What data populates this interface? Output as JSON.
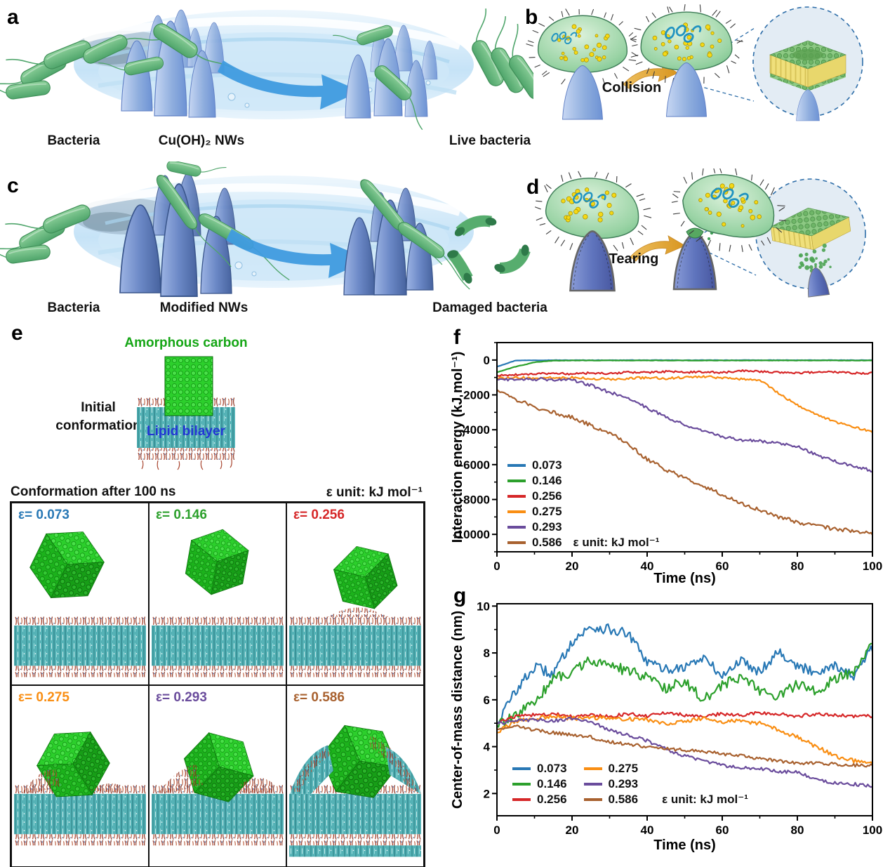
{
  "panel_a": {
    "letter": "a",
    "bacteria": "Bacteria",
    "nws": "Cu(OH)₂ NWs",
    "live": "Live bacteria"
  },
  "panel_b": {
    "letter": "b",
    "arrow": "Collision"
  },
  "panel_c": {
    "letter": "c",
    "bacteria": "Bacteria",
    "nws": "Modified NWs",
    "damaged": "Damaged bacteria"
  },
  "panel_d": {
    "letter": "d",
    "arrow": "Tearing"
  },
  "panel_e": {
    "letter": "e",
    "carbon": "Amorphous carbon",
    "initial_l1": "Initial",
    "initial_l2": "conformation",
    "bilayer": "Lipid bilayer",
    "grid_title": "Conformation after 100 ns",
    "unit": "ε unit: kJ mol⁻¹",
    "cells": [
      {
        "label": "ε= 0.073",
        "color": "#2878b5"
      },
      {
        "label": "ε= 0.146",
        "color": "#2ca02c"
      },
      {
        "label": "ε= 0.256",
        "color": "#d62728"
      },
      {
        "label": "ε= 0.275",
        "color": "#f98e13"
      },
      {
        "label": "ε= 0.293",
        "color": "#6a4c9c"
      },
      {
        "label": "ε= 0.586",
        "color": "#a8612f"
      }
    ]
  },
  "chart_data": [
    {
      "id": "f",
      "panel_letter": "f",
      "type": "line",
      "title": "",
      "xlabel": "Time (ns)",
      "ylabel": "Interaction energy (kJ mol⁻¹)",
      "xlim": [
        0,
        100
      ],
      "ylim": [
        -11000,
        1000
      ],
      "xticks": [
        0,
        20,
        40,
        60,
        80,
        100
      ],
      "yticks": [
        0,
        -2000,
        -4000,
        -6000,
        -8000,
        -10000
      ],
      "x_minor": 10,
      "y_minor": 1000,
      "grid": false,
      "legend_position": "lower-left",
      "legend_note": "ε unit: kJ mol⁻¹",
      "x": [
        0,
        5,
        10,
        15,
        20,
        25,
        30,
        35,
        40,
        45,
        50,
        55,
        60,
        65,
        70,
        75,
        80,
        85,
        90,
        95,
        100
      ],
      "series": [
        {
          "name": "0.073",
          "color": "#2878b5",
          "noise": 8,
          "values": [
            -380,
            -25,
            -12,
            -10,
            -12,
            -10,
            -12,
            -10,
            -12,
            -10,
            -12,
            -10,
            -12,
            -10,
            -12,
            -10,
            -12,
            -10,
            -12,
            -10,
            -12
          ]
        },
        {
          "name": "0.146",
          "color": "#2ca02c",
          "noise": 10,
          "values": [
            -700,
            -380,
            -130,
            -35,
            -25,
            -25,
            -25,
            -25,
            -25,
            -25,
            -25,
            -25,
            -25,
            -25,
            -25,
            -25,
            -25,
            -25,
            -25,
            -25,
            -25
          ]
        },
        {
          "name": "0.256",
          "color": "#d62728",
          "noise": 55,
          "values": [
            -900,
            -840,
            -800,
            -760,
            -800,
            -740,
            -780,
            -700,
            -720,
            -660,
            -700,
            -690,
            -720,
            -610,
            -660,
            -700,
            -730,
            -700,
            -690,
            -760,
            -750
          ]
        },
        {
          "name": "0.275",
          "color": "#f98e13",
          "noise": 65,
          "values": [
            -1050,
            -980,
            -1060,
            -1010,
            -1000,
            -1060,
            -1110,
            -1050,
            -1000,
            -1060,
            -1000,
            -960,
            -1010,
            -1100,
            -1150,
            -1900,
            -2600,
            -3100,
            -3550,
            -3850,
            -4100
          ]
        },
        {
          "name": "0.293",
          "color": "#6a4c9c",
          "noise": 85,
          "values": [
            -1100,
            -1150,
            -1100,
            -1120,
            -1150,
            -1450,
            -1850,
            -2150,
            -2750,
            -3250,
            -3700,
            -4100,
            -4400,
            -4600,
            -4650,
            -4750,
            -4950,
            -5450,
            -5800,
            -6100,
            -6350
          ]
        },
        {
          "name": "0.586",
          "color": "#a8612f",
          "noise": 110,
          "values": [
            -1700,
            -2250,
            -2700,
            -3000,
            -3300,
            -3750,
            -4150,
            -4850,
            -5700,
            -6300,
            -6750,
            -7250,
            -7700,
            -8200,
            -8600,
            -9000,
            -9300,
            -9500,
            -9700,
            -9800,
            -9950
          ]
        }
      ]
    },
    {
      "id": "g",
      "panel_letter": "g",
      "type": "line",
      "title": "",
      "xlabel": "Time (ns)",
      "ylabel": "Center-of-mass distance (nm)",
      "xlim": [
        0,
        100
      ],
      "ylim": [
        1.05,
        10.1
      ],
      "xticks": [
        0,
        20,
        40,
        60,
        80,
        100
      ],
      "yticks": [
        2,
        4,
        6,
        8,
        10
      ],
      "x_minor": 10,
      "y_minor": 1,
      "grid": false,
      "legend_position": "lower-left",
      "legend_note": "ε unit: kJ mol⁻¹",
      "x": [
        0,
        5,
        10,
        15,
        20,
        25,
        30,
        35,
        40,
        45,
        50,
        55,
        60,
        65,
        70,
        75,
        80,
        85,
        90,
        95,
        100
      ],
      "series": [
        {
          "name": "0.073",
          "color": "#2878b5",
          "noise": 0.22,
          "values": [
            5.0,
            6.4,
            7.4,
            7.1,
            8.5,
            9.1,
            9.0,
            8.8,
            7.6,
            7.3,
            7.4,
            7.8,
            7.0,
            7.7,
            7.2,
            8.1,
            7.4,
            7.2,
            7.5,
            7.0,
            8.2
          ]
        },
        {
          "name": "0.146",
          "color": "#2ca02c",
          "noise": 0.22,
          "values": [
            4.9,
            5.3,
            5.9,
            6.9,
            7.2,
            7.7,
            7.5,
            7.2,
            7.0,
            6.5,
            6.8,
            6.0,
            6.6,
            7.0,
            6.4,
            6.1,
            6.7,
            6.3,
            6.9,
            7.2,
            8.5
          ]
        },
        {
          "name": "0.256",
          "color": "#d62728",
          "noise": 0.07,
          "values": [
            5.0,
            5.3,
            5.35,
            5.4,
            5.3,
            5.35,
            5.3,
            5.4,
            5.3,
            5.45,
            5.35,
            5.3,
            5.4,
            5.35,
            5.45,
            5.4,
            5.3,
            5.4,
            5.35,
            5.3,
            5.3
          ]
        },
        {
          "name": "0.275",
          "color": "#f98e13",
          "noise": 0.09,
          "values": [
            4.6,
            5.1,
            5.2,
            5.3,
            5.2,
            5.25,
            5.2,
            5.2,
            5.15,
            5.0,
            5.1,
            5.2,
            5.05,
            5.1,
            5.0,
            4.7,
            4.4,
            4.0,
            3.6,
            3.4,
            3.3
          ]
        },
        {
          "name": "0.293",
          "color": "#6a4c9c",
          "noise": 0.07,
          "values": [
            5.0,
            5.1,
            5.15,
            5.1,
            5.2,
            5.1,
            4.7,
            4.5,
            4.25,
            3.9,
            3.6,
            3.4,
            3.2,
            3.1,
            3.05,
            2.95,
            2.9,
            2.6,
            2.45,
            2.4,
            2.3
          ]
        },
        {
          "name": "0.586",
          "color": "#a8612f",
          "noise": 0.07,
          "values": [
            4.75,
            4.9,
            4.7,
            4.6,
            4.5,
            4.4,
            4.2,
            4.1,
            4.0,
            3.9,
            3.85,
            3.8,
            3.7,
            3.6,
            3.5,
            3.4,
            3.3,
            3.3,
            3.25,
            3.2,
            3.2
          ]
        }
      ]
    }
  ]
}
